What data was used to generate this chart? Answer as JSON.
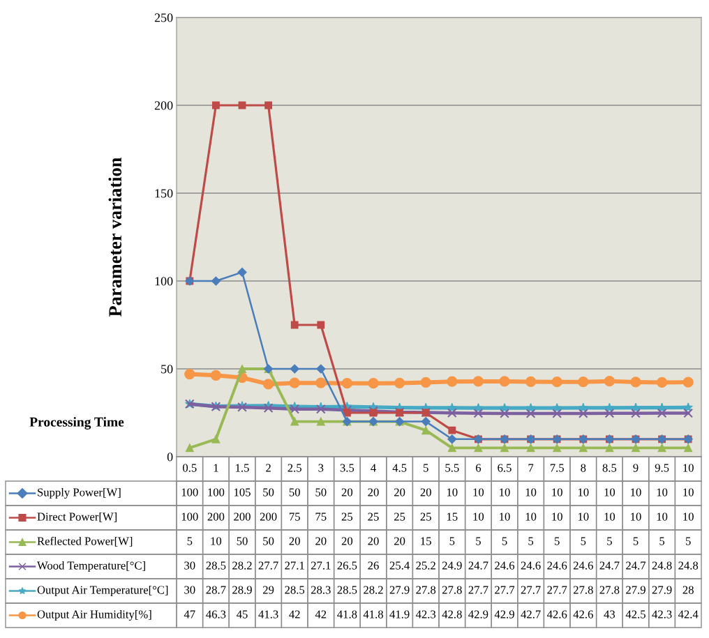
{
  "chart_data": {
    "type": "line",
    "xlabel": "Processing Time",
    "ylabel": "Parameter variation",
    "categories": [
      "0.5",
      "1",
      "1.5",
      "2",
      "2.5",
      "3",
      "3.5",
      "4",
      "4.5",
      "5",
      "5.5",
      "6",
      "6.5",
      "7",
      "7.5",
      "8",
      "8.5",
      "9",
      "9.5",
      "10"
    ],
    "ylim": [
      0,
      250
    ],
    "yticks": [
      0,
      50,
      100,
      150,
      200,
      250
    ],
    "grid": "y",
    "data_labels": true,
    "legend": "bottom",
    "line_style": "solid",
    "series": [
      {
        "name": "Supply Power[W]",
        "color": "#4a7ebb",
        "marker": "diamond",
        "values": [
          100,
          100,
          105,
          50,
          50,
          50,
          20,
          20,
          20,
          20,
          10,
          10,
          10,
          10,
          10,
          10,
          10,
          10,
          10,
          10
        ]
      },
      {
        "name": "Direct Power[W]",
        "color": "#be4b48",
        "marker": "square",
        "values": [
          100,
          200,
          200,
          200,
          75,
          75,
          25,
          25,
          25,
          25,
          15,
          10,
          10,
          10,
          10,
          10,
          10,
          10,
          10,
          10
        ]
      },
      {
        "name": "Reflected Power[W]",
        "color": "#98b954",
        "marker": "triangle",
        "values": [
          5,
          10,
          50,
          50,
          20,
          20,
          20,
          20,
          20,
          15,
          5,
          5,
          5,
          5,
          5,
          5,
          5,
          5,
          5,
          5
        ]
      },
      {
        "name": "Wood Temperature[°C]",
        "color": "#7d60a0",
        "marker": "cross",
        "values": [
          30,
          28.5,
          28.2,
          27.7,
          27.1,
          27.1,
          26.5,
          26,
          25.4,
          25.2,
          24.9,
          24.7,
          24.6,
          24.6,
          24.6,
          24.6,
          24.7,
          24.7,
          24.8,
          24.8
        ]
      },
      {
        "name": "Output Air Temperature[°C]",
        "color": "#46aac5",
        "marker": "star",
        "values": [
          30,
          28.7,
          28.9,
          29,
          28.5,
          28.3,
          28.5,
          28.2,
          27.9,
          27.8,
          27.8,
          27.7,
          27.7,
          27.7,
          27.7,
          27.8,
          27.8,
          27.9,
          27.9,
          28
        ]
      },
      {
        "name": "Output Air Humidity[%]",
        "color": "#f79646",
        "marker": "circle",
        "values": [
          47,
          46.3,
          45,
          41.3,
          42,
          42,
          41.8,
          41.8,
          41.9,
          42.3,
          42.8,
          42.9,
          42.9,
          42.7,
          42.6,
          42.6,
          43,
          42.5,
          42.3,
          42.4
        ]
      }
    ]
  }
}
